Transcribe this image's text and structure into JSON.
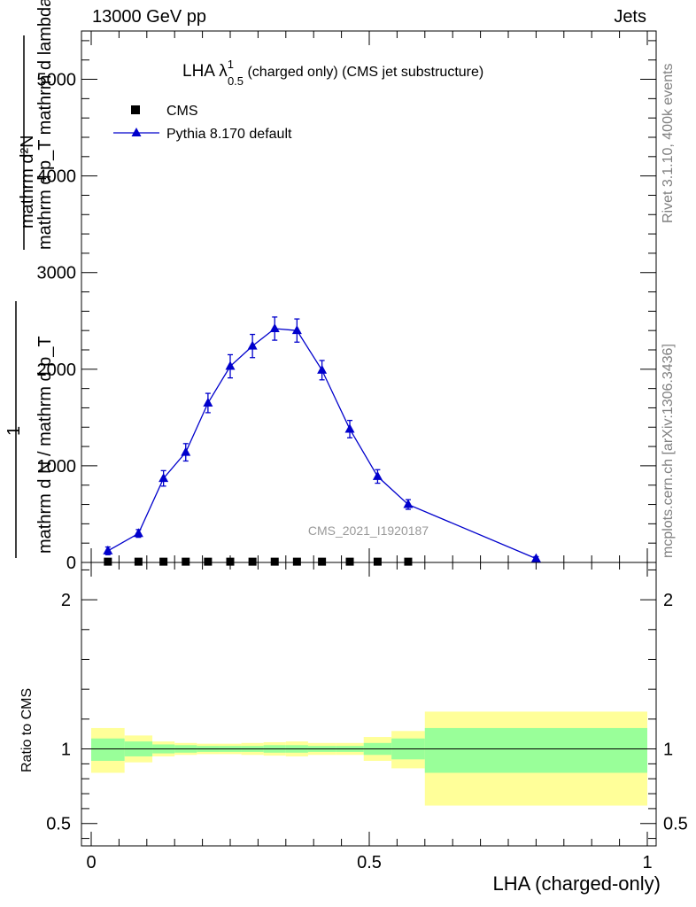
{
  "header": {
    "energy_label": "13000 GeV pp",
    "category_label": "Jets"
  },
  "side_meta": {
    "rivet_info": "Rivet 3.1.10,  400k events",
    "mcplots_info": "mcplots.cern.ch [arXiv:1306.3436]"
  },
  "main_ylabel": {
    "numerator": "mathrm d²N",
    "denominator": "mathrm d p_T mathrm d lambda",
    "prefactor_top": "1",
    "prefactor_bottom": "mathrm d N / mathrm d p_T"
  },
  "ratio_ylabel": "Ratio to CMS",
  "xlabel": "LHA (charged-only)",
  "watermark": "CMS_2021_I1920187",
  "colors": {
    "mc_line": "#0000cc",
    "band_inner": "#99ff99",
    "band_outer": "#ffff99",
    "data_marker": "#000000"
  },
  "chart_data": [
    {
      "type": "line",
      "title": "LHA λ^1_0.5 (charged only) (CMS jet substructure)",
      "title_parts": {
        "prefix": "LHA λ",
        "sup": "1",
        "sub": "0.5",
        "suffix": " (charged only) (CMS jet substructure)"
      },
      "legend": [
        "CMS",
        "Pythia 8.170 default"
      ],
      "legend_placement": "top-left",
      "xlim": [
        0,
        1
      ],
      "ylim": [
        0,
        5500
      ],
      "yticks": [
        0,
        1000,
        2000,
        3000,
        4000,
        5000
      ],
      "ytick_labels": [
        "0",
        "1000",
        "2000",
        "3000",
        "4000",
        "5000"
      ],
      "series": [
        {
          "name": "CMS",
          "marker": "square",
          "x": [
            0.03,
            0.085,
            0.13,
            0.17,
            0.21,
            0.25,
            0.29,
            0.33,
            0.37,
            0.415,
            0.465,
            0.515,
            0.57
          ],
          "y": [
            8,
            8,
            8,
            8,
            8,
            8,
            8,
            8,
            8,
            8,
            8,
            8,
            8
          ]
        },
        {
          "name": "Pythia 8.170 default",
          "marker": "triangle",
          "x": [
            0.03,
            0.085,
            0.13,
            0.17,
            0.21,
            0.25,
            0.29,
            0.33,
            0.37,
            0.415,
            0.465,
            0.515,
            0.57,
            0.8
          ],
          "y": [
            120,
            300,
            870,
            1140,
            1650,
            2030,
            2240,
            2420,
            2400,
            1990,
            1380,
            890,
            600,
            40
          ],
          "yerr": [
            40,
            40,
            80,
            90,
            100,
            120,
            120,
            120,
            120,
            100,
            90,
            70,
            50,
            20
          ]
        }
      ]
    },
    {
      "type": "area",
      "ylabel": "Ratio to CMS",
      "xlabel": "LHA (charged-only)",
      "xlim": [
        0,
        1
      ],
      "ylim": [
        0.35,
        2.25
      ],
      "yticks": [
        0.5,
        1,
        2
      ],
      "ytick_labels": [
        "0.5",
        "1",
        "2"
      ],
      "xticks": [
        0,
        0.5,
        1
      ],
      "xtick_labels": [
        "0",
        "0.5",
        "1"
      ],
      "bins": [
        {
          "x0": 0.0,
          "x1": 0.06,
          "inner": [
            0.92,
            1.07
          ],
          "outer": [
            0.84,
            1.14
          ]
        },
        {
          "x0": 0.06,
          "x1": 0.11,
          "inner": [
            0.95,
            1.05
          ],
          "outer": [
            0.91,
            1.09
          ]
        },
        {
          "x0": 0.11,
          "x1": 0.15,
          "inner": [
            0.97,
            1.03
          ],
          "outer": [
            0.95,
            1.05
          ]
        },
        {
          "x0": 0.15,
          "x1": 0.19,
          "inner": [
            0.975,
            1.025
          ],
          "outer": [
            0.96,
            1.04
          ]
        },
        {
          "x0": 0.19,
          "x1": 0.23,
          "inner": [
            0.98,
            1.02
          ],
          "outer": [
            0.965,
            1.035
          ]
        },
        {
          "x0": 0.23,
          "x1": 0.27,
          "inner": [
            0.98,
            1.02
          ],
          "outer": [
            0.965,
            1.035
          ]
        },
        {
          "x0": 0.27,
          "x1": 0.31,
          "inner": [
            0.98,
            1.02
          ],
          "outer": [
            0.96,
            1.04
          ]
        },
        {
          "x0": 0.31,
          "x1": 0.35,
          "inner": [
            0.975,
            1.025
          ],
          "outer": [
            0.955,
            1.045
          ]
        },
        {
          "x0": 0.35,
          "x1": 0.39,
          "inner": [
            0.975,
            1.025
          ],
          "outer": [
            0.95,
            1.05
          ]
        },
        {
          "x0": 0.39,
          "x1": 0.44,
          "inner": [
            0.98,
            1.02
          ],
          "outer": [
            0.96,
            1.04
          ]
        },
        {
          "x0": 0.44,
          "x1": 0.49,
          "inner": [
            0.98,
            1.02
          ],
          "outer": [
            0.96,
            1.04
          ]
        },
        {
          "x0": 0.49,
          "x1": 0.54,
          "inner": [
            0.96,
            1.04
          ],
          "outer": [
            0.92,
            1.08
          ]
        },
        {
          "x0": 0.54,
          "x1": 0.6,
          "inner": [
            0.93,
            1.07
          ],
          "outer": [
            0.87,
            1.12
          ]
        },
        {
          "x0": 0.6,
          "x1": 1.0,
          "inner": [
            0.84,
            1.14
          ],
          "outer": [
            0.62,
            1.25
          ]
        }
      ],
      "reference_line": 1
    }
  ]
}
